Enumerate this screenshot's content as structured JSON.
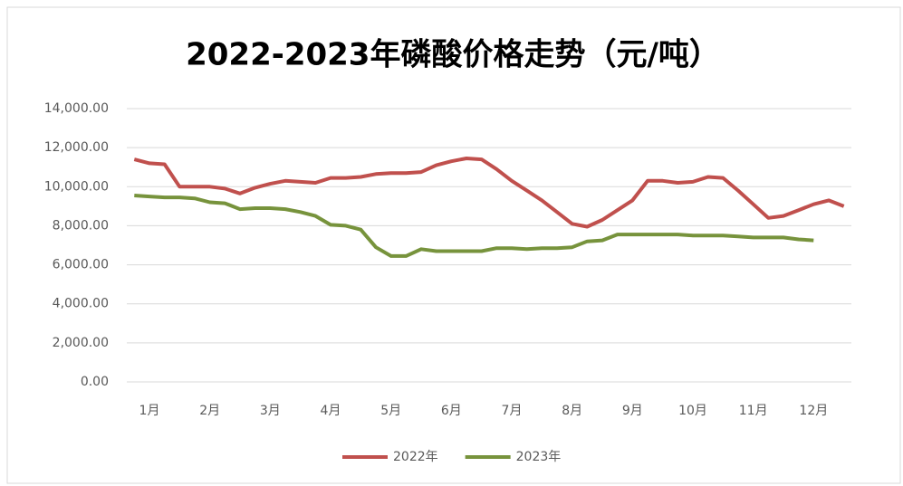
{
  "chart_data": {
    "type": "line",
    "title": "2022-2023年磷酸价格走势（元/吨）",
    "categories": [
      "1月",
      null,
      null,
      null,
      "2月",
      null,
      null,
      null,
      "3月",
      null,
      null,
      null,
      "4月",
      null,
      null,
      null,
      "5月",
      null,
      null,
      null,
      "6月",
      null,
      null,
      null,
      "7月",
      null,
      null,
      null,
      "8月",
      null,
      null,
      null,
      "9月",
      null,
      null,
      null,
      "10月",
      null,
      null,
      null,
      "11月",
      null,
      null,
      null,
      "12月",
      null,
      null,
      null
    ],
    "series": [
      {
        "name": "2022年",
        "color": "#c0504d",
        "values": [
          11400,
          11200,
          11150,
          10000,
          10000,
          10000,
          9900,
          9650,
          9950,
          10150,
          10300,
          10250,
          10200,
          10450,
          10450,
          10500,
          10650,
          10700,
          10700,
          10750,
          11100,
          11300,
          11450,
          11400,
          10900,
          10300,
          9800,
          9300,
          8700,
          8100,
          7950,
          8300,
          8800,
          9300,
          10300,
          10300,
          10200,
          10250,
          10500,
          10450,
          9800,
          9100,
          8400,
          8500,
          8800,
          9100,
          9300,
          9000
        ]
      },
      {
        "name": "2023年",
        "color": "#77933c",
        "values": [
          9550,
          9500,
          9450,
          9450,
          9400,
          9200,
          9150,
          8850,
          8900,
          8900,
          8850,
          8700,
          8500,
          8050,
          8000,
          7800,
          6900,
          6450,
          6450,
          6800,
          6700,
          6700,
          6700,
          6700,
          6850,
          6850,
          6800,
          6850,
          6850,
          6900,
          7200,
          7250,
          7550,
          7550,
          7550,
          7550,
          7550,
          7500,
          7500,
          7500,
          7450,
          7400,
          7400,
          7400,
          7300,
          7250,
          null,
          null
        ]
      }
    ],
    "ylim": [
      0,
      14000
    ],
    "yticks": [
      {
        "value": 0,
        "label": "0.00"
      },
      {
        "value": 2000,
        "label": "2,000.00"
      },
      {
        "value": 4000,
        "label": "4,000.00"
      },
      {
        "value": 6000,
        "label": "6,000.00"
      },
      {
        "value": 8000,
        "label": "8,000.00"
      },
      {
        "value": 10000,
        "label": "10,000.00"
      },
      {
        "value": 12000,
        "label": "12,000.00"
      },
      {
        "value": 14000,
        "label": "14,000.00"
      }
    ],
    "grid": true,
    "legend": "bottom"
  }
}
